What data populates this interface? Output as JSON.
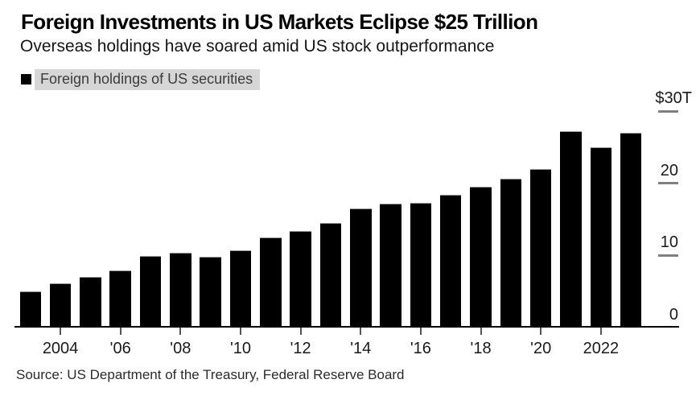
{
  "header": {
    "title": "Foreign Investments in US Markets Eclipse $25 Trillion",
    "subtitle": "Overseas holdings have soared amid US stock outperformance"
  },
  "legend": {
    "label": "Foreign holdings of US securities",
    "swatch_color": "#000000",
    "highlight_color": "#d6d6d6"
  },
  "chart_data": {
    "type": "bar",
    "title": "Foreign Investments in US Markets Eclipse $25 Trillion",
    "subtitle": "Overseas holdings have soared amid US stock outperformance",
    "series_name": "Foreign holdings of US securities",
    "unit": "USD trillions",
    "categories": [
      2003,
      2004,
      2005,
      2006,
      2007,
      2008,
      2009,
      2010,
      2011,
      2012,
      2013,
      2014,
      2015,
      2016,
      2017,
      2018,
      2019,
      2020,
      2021,
      2022,
      2023
    ],
    "values": [
      5.0,
      6.1,
      7.0,
      7.9,
      9.9,
      10.4,
      9.8,
      10.7,
      12.5,
      13.4,
      14.5,
      16.5,
      17.2,
      17.3,
      18.4,
      19.5,
      20.6,
      22.0,
      27.2,
      25.0,
      27.0
    ],
    "ylim": [
      0,
      30
    ],
    "y_ticks": [
      {
        "value": 30,
        "label": "$30T"
      },
      {
        "value": 20,
        "label": "20"
      },
      {
        "value": 10,
        "label": "10"
      },
      {
        "value": 0,
        "label": "0"
      }
    ],
    "x_ticks": [
      {
        "year": 2004,
        "label": "2004"
      },
      {
        "year": 2006,
        "label": "'06"
      },
      {
        "year": 2008,
        "label": "'08"
      },
      {
        "year": 2010,
        "label": "'10"
      },
      {
        "year": 2012,
        "label": "'12"
      },
      {
        "year": 2014,
        "label": "'14"
      },
      {
        "year": 2016,
        "label": "'16"
      },
      {
        "year": 2018,
        "label": "'18"
      },
      {
        "year": 2020,
        "label": "'20"
      },
      {
        "year": 2022,
        "label": "2022"
      }
    ],
    "bar_color": "#000000",
    "grid": false,
    "axis_side": "right",
    "legend_position": "top-left"
  },
  "source": {
    "text": "Source: US Department of the Treasury, Federal Reserve Board"
  }
}
